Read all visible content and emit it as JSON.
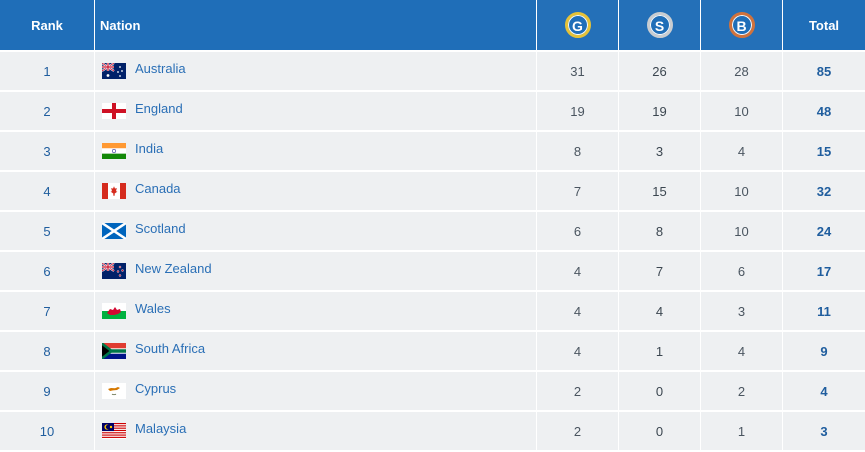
{
  "header": {
    "rank": "Rank",
    "nation": "Nation",
    "gold": "G",
    "silver": "S",
    "bronze": "B",
    "total": "Total"
  },
  "colors": {
    "header_bg": "#1f6eb8",
    "row_bg": "#eef0f2",
    "text_blue": "#2a6fb6",
    "gold_ring": "#e5c238",
    "silver_ring": "#c9cdd1",
    "bronze_ring": "#d0723c"
  },
  "rows": [
    {
      "rank": "1",
      "nation": "Australia",
      "flag": "australia-flag-icon",
      "gold": "31",
      "silver": "26",
      "bronze": "28",
      "total": "85"
    },
    {
      "rank": "2",
      "nation": "England",
      "flag": "england-flag-icon",
      "gold": "19",
      "silver": "19",
      "bronze": "10",
      "total": "48"
    },
    {
      "rank": "3",
      "nation": "India",
      "flag": "india-flag-icon",
      "gold": "8",
      "silver": "3",
      "bronze": "4",
      "total": "15"
    },
    {
      "rank": "4",
      "nation": "Canada",
      "flag": "canada-flag-icon",
      "gold": "7",
      "silver": "15",
      "bronze": "10",
      "total": "32"
    },
    {
      "rank": "5",
      "nation": "Scotland",
      "flag": "scotland-flag-icon",
      "gold": "6",
      "silver": "8",
      "bronze": "10",
      "total": "24"
    },
    {
      "rank": "6",
      "nation": "New Zealand",
      "flag": "new-zealand-flag-icon",
      "gold": "4",
      "silver": "7",
      "bronze": "6",
      "total": "17"
    },
    {
      "rank": "7",
      "nation": "Wales",
      "flag": "wales-flag-icon",
      "gold": "4",
      "silver": "4",
      "bronze": "3",
      "total": "11"
    },
    {
      "rank": "8",
      "nation": "South Africa",
      "flag": "south-africa-flag-icon",
      "gold": "4",
      "silver": "1",
      "bronze": "4",
      "total": "9"
    },
    {
      "rank": "9",
      "nation": "Cyprus",
      "flag": "cyprus-flag-icon",
      "gold": "2",
      "silver": "0",
      "bronze": "2",
      "total": "4"
    },
    {
      "rank": "10",
      "nation": "Malaysia",
      "flag": "malaysia-flag-icon",
      "gold": "2",
      "silver": "0",
      "bronze": "1",
      "total": "3"
    }
  ]
}
